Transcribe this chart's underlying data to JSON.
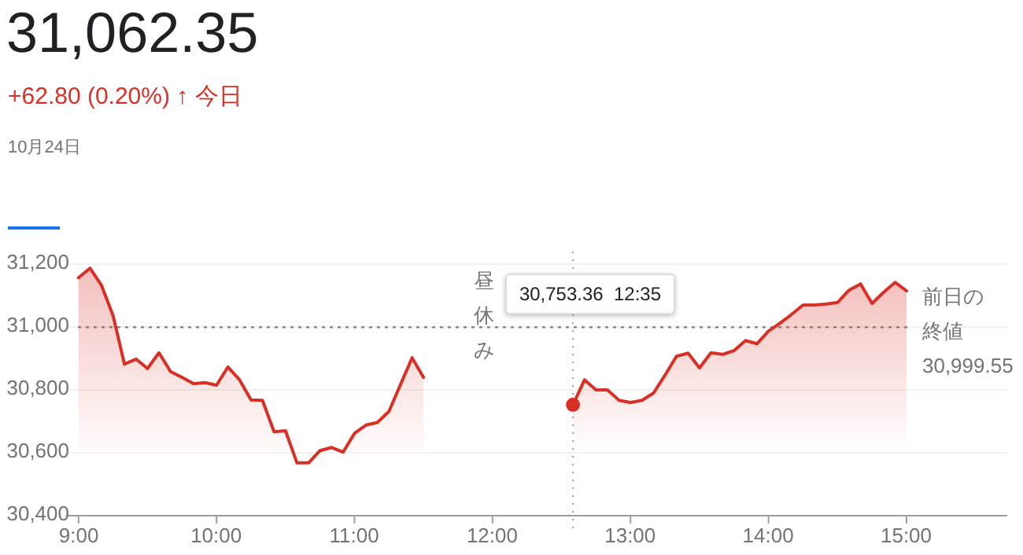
{
  "chart_data": {
    "type": "area",
    "title": "31,062.35",
    "subtitle": "+62.80 (0.20%) ↑ 今日",
    "annotations": [
      "10月24日",
      "昼休み",
      "30,753.36  12:35"
    ],
    "series": [
      {
        "color": "#d93025",
        "x": [
          9.0,
          9.083,
          9.167,
          9.25,
          9.333,
          9.417,
          9.5,
          9.583,
          9.667,
          9.75,
          9.833,
          9.917,
          10.0,
          10.083,
          10.167,
          10.25,
          10.333,
          10.417,
          10.5,
          10.583,
          10.667,
          10.75,
          10.833,
          10.917,
          11.0,
          11.083,
          11.167,
          11.25,
          11.333,
          11.417,
          11.5
        ],
        "values": [
          31157,
          31187,
          31132,
          31037,
          30882,
          30898,
          30868,
          30918,
          30858,
          30840,
          30820,
          30823,
          30815,
          30873,
          30832,
          30768,
          30767,
          30667,
          30670,
          30568,
          30568,
          30607,
          30617,
          30602,
          30662,
          30688,
          30697,
          30732,
          30817,
          30902,
          30840
        ]
      },
      {
        "color": "#d93025",
        "x": [
          12.583,
          12.667,
          12.75,
          12.833,
          12.917,
          13.0,
          13.083,
          13.167,
          13.25,
          13.333,
          13.417,
          13.5,
          13.583,
          13.667,
          13.75,
          13.833,
          13.917,
          14.0,
          14.083,
          14.167,
          14.25,
          14.333,
          14.417,
          14.5,
          14.583,
          14.667,
          14.75,
          14.833,
          14.917,
          15.0
        ],
        "values": [
          30753,
          30832,
          30800,
          30800,
          30767,
          30760,
          30767,
          30790,
          30847,
          30907,
          30917,
          30870,
          30918,
          30913,
          30925,
          30957,
          30947,
          30987,
          31012,
          31040,
          31070,
          31070,
          31073,
          31078,
          31117,
          31137,
          31075,
          31110,
          31142,
          31115
        ]
      }
    ],
    "xlim": [
      8.91,
      15.73
    ],
    "ylim": [
      30400,
      31240
    ],
    "xticks": [
      {
        "value": 9,
        "label": "9:00"
      },
      {
        "value": 10,
        "label": "10:00"
      },
      {
        "value": 11,
        "label": "11:00"
      },
      {
        "value": 12,
        "label": "12:00"
      },
      {
        "value": 13,
        "label": "13:00"
      },
      {
        "value": 14,
        "label": "14:00"
      },
      {
        "value": 15,
        "label": "15:00"
      }
    ],
    "yticks": [
      {
        "value": 30400,
        "label": "30,400"
      },
      {
        "value": 30600,
        "label": "30,600"
      },
      {
        "value": 30800,
        "label": "30,800"
      },
      {
        "value": 31000,
        "label": "31,000"
      },
      {
        "value": 31200,
        "label": "31,200"
      }
    ],
    "grid": "y",
    "marker": "none",
    "line_style": "solid",
    "ref_lines": [
      {
        "axis": "x",
        "value": 12.583,
        "line_style": "dotted",
        "color": "#9aa0a6"
      },
      {
        "axis": "y",
        "value": 30999.55,
        "label": "前日の終値 30,999.55",
        "line_style": "dotted",
        "color": "#80868b"
      }
    ]
  }
}
